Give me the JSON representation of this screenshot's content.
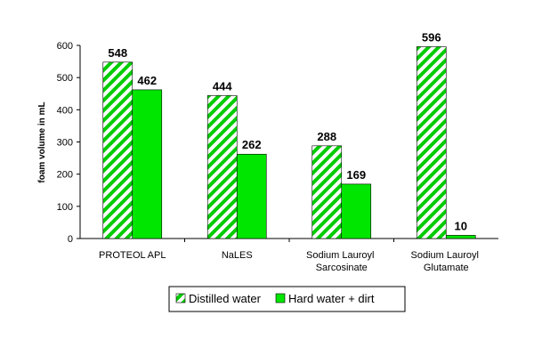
{
  "chart_data": {
    "type": "bar",
    "y_label": "foam volume in mL",
    "categories": [
      "PROTEOL APL",
      "NaLES",
      "Sodium Lauroyl\nSarcosinate",
      "Sodium Lauroyl\nGlutamate"
    ],
    "series": [
      {
        "name": "Distilled water",
        "color": "#00cc00",
        "pattern": "hatch",
        "values": [
          548,
          444,
          288,
          596
        ]
      },
      {
        "name": "Hard water + dirt",
        "color": "#00e600",
        "values": [
          462,
          262,
          169,
          10
        ]
      }
    ],
    "ylim": [
      0,
      600
    ],
    "yticks": [
      0,
      100,
      200,
      300,
      400,
      500,
      600
    ],
    "grid": false,
    "legend": "bottom"
  }
}
